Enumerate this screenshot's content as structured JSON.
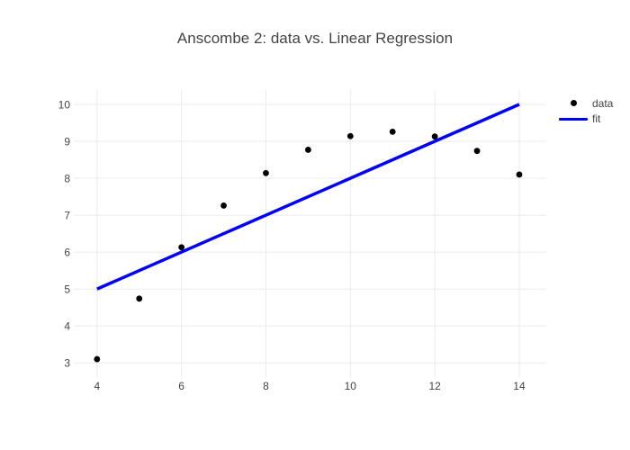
{
  "style": {
    "background": "#ffffff",
    "grid_color": "#ebebeb",
    "text_color": "#444444",
    "title_color": "#444444"
  },
  "chart_data": {
    "type": "scatter",
    "title": "Anscombe 2: data vs. Linear Regression",
    "xlabel": "",
    "ylabel": "",
    "grid": true,
    "legend_position": "right-top-outside",
    "x_range": [
      3.45,
      14.64
    ],
    "y_range": [
      2.59,
      10.39
    ],
    "x_ticks": [
      4,
      6,
      8,
      10,
      12,
      14
    ],
    "y_ticks": [
      3,
      4,
      5,
      6,
      7,
      8,
      9,
      10
    ],
    "series": [
      {
        "name": "data",
        "mode": "markers",
        "color": "#000000",
        "marker_radius": 3.4,
        "x": [
          10,
          8,
          13,
          9,
          11,
          14,
          6,
          4,
          12,
          7,
          5
        ],
        "y": [
          9.14,
          8.14,
          8.74,
          8.77,
          9.26,
          8.1,
          6.13,
          3.1,
          9.13,
          7.26,
          4.74
        ]
      },
      {
        "name": "fit",
        "mode": "line",
        "color": "#0000ff",
        "line_width": 3.5,
        "x": [
          4,
          14
        ],
        "y": [
          5.0,
          10.0
        ]
      }
    ]
  }
}
